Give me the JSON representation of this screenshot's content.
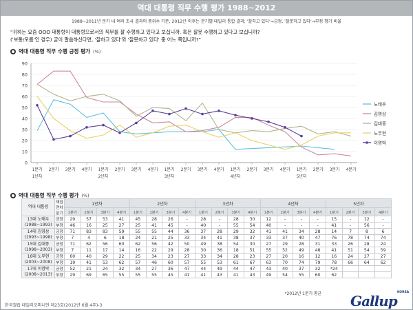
{
  "page": {
    "title": "역대 대통령 직무 수행 평가 1988~2012",
    "subtitle": "1988~2011년 분기 내 여러 조사 결과의 중위수 기준, 2012년 이후는 분기별 데일리 통합 결과; '잘하고 있다'→긍정, '잘못하고 있다'→부정 평가 비율",
    "question_1": "\"귀하는 요즘 OOO 대통령이 대통령으로서의 직무를 잘 수행하고 있다고 보십니까, 혹은 잘못 수행하고 있다고 보십니까?",
    "question_2": "('보통/모름'인 경우) 굳이 말씀하신다면, '잘하고 있다'와 '잘못하고 있다' 중 어느 쪽입니까?\"",
    "chart_section_title": "역대 대통령 직무 수행 긍정 평가",
    "chart_section_unit": "(%)",
    "table_section_title": "역대 대통령 직무 수행 평가",
    "table_section_unit": "(%)",
    "footnote": "*2012년 1분기 평균",
    "source": "한국갤럽 데일리오피니언 제23호(2012년 6월 4주)-3",
    "logo_text": "Gallup",
    "logo_small": "KOREA"
  },
  "colors": {
    "노태우": "#5ec0dc",
    "김영삼": "#c98a9e",
    "김대중": "#b0b48a",
    "노무현": "#e8d266",
    "이명박": "#5b3f99"
  },
  "chart_data": {
    "type": "line",
    "title": "역대 대통령 직무 수행 긍정 평가",
    "ylabel": "(%)",
    "ylim": [
      0,
      90
    ],
    "yticks": [
      0,
      10,
      20,
      30,
      40,
      50,
      60,
      70,
      80,
      90
    ],
    "grid": true,
    "legend": "right",
    "x_quarters": [
      "1분기",
      "2분기",
      "3분기",
      "4분기",
      "1분기",
      "2분기",
      "3분기",
      "4분기",
      "1분기",
      "2분기",
      "3분기",
      "4분기",
      "1분기",
      "2분기",
      "3분기",
      "4분기",
      "1분기",
      "2분기",
      "3분기",
      "4분기"
    ],
    "x_years": [
      {
        "label": "1년차",
        "index": 0
      },
      {
        "label": "2년차",
        "index": 4
      },
      {
        "label": "3년차",
        "index": 8
      },
      {
        "label": "4년차",
        "index": 12
      },
      {
        "label": "5년차",
        "index": 16
      }
    ],
    "series": [
      {
        "name": "노태우",
        "values": [
          29,
          57,
          53,
          41,
          45,
          28,
          26,
          null,
          28,
          null,
          28,
          30,
          12,
          null,
          null,
          null,
          15,
          null,
          12,
          null
        ]
      },
      {
        "name": "김영삼",
        "values": [
          71,
          83,
          83,
          59,
          55,
          55,
          44,
          36,
          37,
          28,
          29,
          32,
          41,
          41,
          34,
          28,
          14,
          7,
          8,
          6
        ]
      },
      {
        "name": "김대중",
        "values": [
          71,
          62,
          56,
          60,
          62,
          56,
          42,
          50,
          49,
          38,
          54,
          30,
          27,
          29,
          28,
          31,
          33,
          26,
          28,
          24
        ]
      },
      {
        "name": "노무현",
        "values": [
          60,
          40,
          29,
          22,
          25,
          34,
          23,
          27,
          33,
          34,
          28,
          23,
          27,
          20,
          16,
          12,
          16,
          24,
          27,
          27
        ]
      },
      {
        "name": "이명박",
        "values": [
          52,
          21,
          24,
          32,
          34,
          27,
          36,
          47,
          44,
          49,
          44,
          47,
          43,
          40,
          37,
          32,
          24,
          null,
          null,
          null
        ]
      }
    ]
  },
  "table": {
    "header_president": "역대 대통령",
    "header_period": "재임연차 분기",
    "years": [
      "1년차",
      "2년차",
      "3년차",
      "4년차",
      "5년차"
    ],
    "quarters": [
      "1분기",
      "2분기",
      "3분기",
      "4분기"
    ],
    "kind_pos": "긍정",
    "kind_neg": "부정",
    "rows": [
      {
        "name": "13대 노태우",
        "term": "(1988~1993)",
        "pos": [
          "29",
          "57",
          "53",
          "41",
          "45",
          "28",
          "26",
          "-",
          "28",
          "-",
          "28",
          "30",
          "12",
          "-",
          "-",
          "-",
          "15",
          "-",
          "12",
          "-"
        ],
        "neg": [
          "46",
          "16",
          "25",
          "27",
          "25",
          "41",
          "45",
          "-",
          "40",
          "-",
          "55",
          "54",
          "40",
          "-",
          "-",
          "-",
          "41",
          "-",
          "56",
          "-"
        ]
      },
      {
        "name": "14대 김영삼",
        "term": "(1993~1998)",
        "pos": [
          "71",
          "83",
          "83",
          "59",
          "55",
          "55",
          "44",
          "36",
          "37",
          "28",
          "29",
          "32",
          "41",
          "41",
          "34",
          "28",
          "14",
          "7",
          "8",
          "6"
        ],
        "neg": [
          "7",
          "4",
          "6",
          "18",
          "24",
          "21",
          "25",
          "33",
          "34",
          "41",
          "38",
          "37",
          "33",
          "37",
          "40",
          "47",
          "76",
          "78",
          "74",
          "74"
        ]
      },
      {
        "name": "15대 김대중",
        "term": "(1998~2003)",
        "pos": [
          "71",
          "62",
          "56",
          "60",
          "62",
          "56",
          "42",
          "50",
          "49",
          "38",
          "54",
          "30",
          "27",
          "29",
          "28",
          "31",
          "33",
          "26",
          "28",
          "24"
        ],
        "neg": [
          "7",
          "11",
          "17",
          "14",
          "16",
          "22",
          "29",
          "28",
          "30",
          "36",
          "18",
          "51",
          "55",
          "52",
          "49",
          "48",
          "41",
          "51",
          "54",
          "59"
        ]
      },
      {
        "name": "16대 노무현",
        "term": "(2003~2008)",
        "pos": [
          "60",
          "40",
          "29",
          "22",
          "25",
          "34",
          "23",
          "27",
          "33",
          "34",
          "28",
          "23",
          "27",
          "20",
          "16",
          "12",
          "16",
          "24",
          "27",
          "27"
        ],
        "neg": [
          "19",
          "41",
          "53",
          "62",
          "57",
          "46",
          "60",
          "57",
          "55",
          "53",
          "61",
          "67",
          "63",
          "70",
          "74",
          "79",
          "78",
          "66",
          "64",
          "62"
        ]
      },
      {
        "name": "17대 이명박",
        "term": "(2008~2013)",
        "pos": [
          "52",
          "21",
          "24",
          "32",
          "34",
          "27",
          "36",
          "47",
          "44",
          "49",
          "44",
          "47",
          "43",
          "40",
          "37",
          "32",
          "*24",
          "",
          "",
          ""
        ],
        "neg": [
          "29",
          "69",
          "65",
          "55",
          "55",
          "55",
          "45",
          "41",
          "41",
          "43",
          "41",
          "43",
          "49",
          "54",
          "55",
          "60",
          "62",
          "",
          "",
          ""
        ]
      }
    ]
  }
}
